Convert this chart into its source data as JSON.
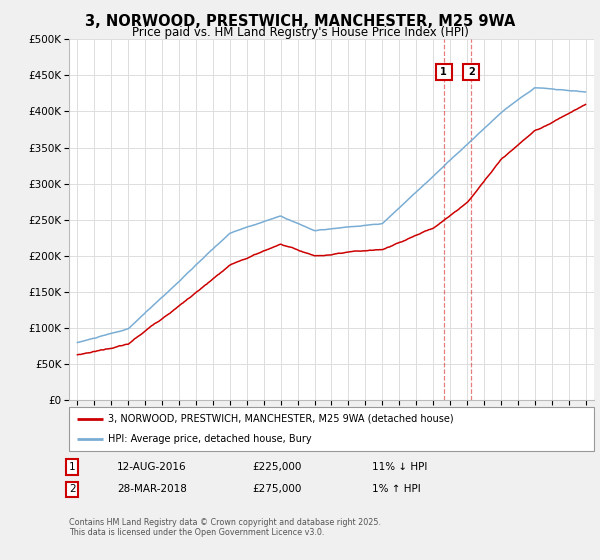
{
  "title": "3, NORWOOD, PRESTWICH, MANCHESTER, M25 9WA",
  "subtitle": "Price paid vs. HM Land Registry's House Price Index (HPI)",
  "legend_line1": "3, NORWOOD, PRESTWICH, MANCHESTER, M25 9WA (detached house)",
  "legend_line2": "HPI: Average price, detached house, Bury",
  "transaction1": {
    "label": "1",
    "date": "12-AUG-2016",
    "price": "£225,000",
    "hpi": "11% ↓ HPI",
    "year": 2016.62,
    "price_val": 225000
  },
  "transaction2": {
    "label": "2",
    "date": "28-MAR-2018",
    "price": "£275,000",
    "hpi": "1% ↑ HPI",
    "year": 2018.25,
    "price_val": 275000
  },
  "red_color": "#cc0000",
  "blue_color": "#7aadd4",
  "footer": "Contains HM Land Registry data © Crown copyright and database right 2025.\nThis data is licensed under the Open Government Licence v3.0.",
  "ylim": [
    0,
    500000
  ],
  "yticks": [
    0,
    50000,
    100000,
    150000,
    200000,
    250000,
    300000,
    350000,
    400000,
    450000,
    500000
  ],
  "xlim_start": 1994.5,
  "xlim_end": 2025.5,
  "background_color": "#f0f0f0",
  "plot_bg": "#ffffff",
  "grid_color": "#dddddd"
}
